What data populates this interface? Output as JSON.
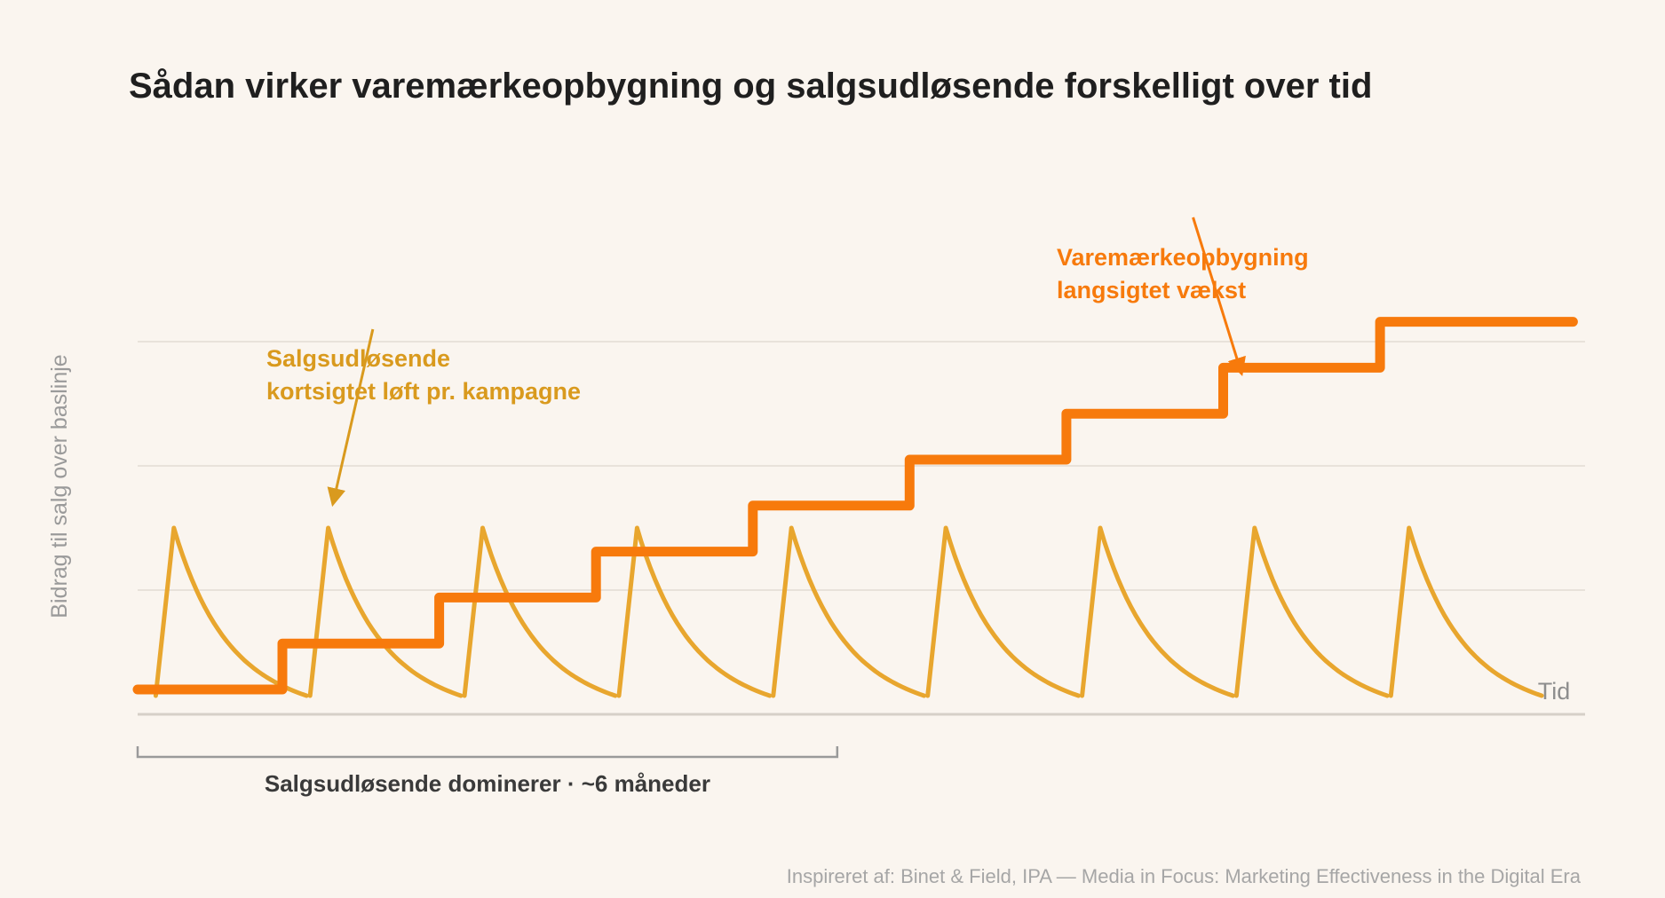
{
  "chart_data": {
    "type": "line",
    "title": "Sådan virker varemærkeopbygning og salgsudløsende forskelligt over tid",
    "ylabel": "Bidrag til salg over baslinje",
    "xlabel": "Tid",
    "grid": true,
    "legend": "none",
    "xlim": [
      0,
      12
    ],
    "ylim": [
      0,
      4
    ],
    "colors": {
      "brand": "#f77a0c",
      "activation": "#e8a62e",
      "activation_text": "#d99a1e"
    },
    "series": [
      {
        "name": "Varemærkeopbygning",
        "style": "step",
        "steps": [
          {
            "x0": 0.0,
            "x1": 1.2,
            "y": 0.2
          },
          {
            "x0": 1.2,
            "x1": 2.5,
            "y": 0.57
          },
          {
            "x0": 2.5,
            "x1": 3.8,
            "y": 0.94
          },
          {
            "x0": 3.8,
            "x1": 5.1,
            "y": 1.31
          },
          {
            "x0": 5.1,
            "x1": 6.4,
            "y": 1.68
          },
          {
            "x0": 6.4,
            "x1": 7.7,
            "y": 2.05
          },
          {
            "x0": 7.7,
            "x1": 9.0,
            "y": 2.42
          },
          {
            "x0": 9.0,
            "x1": 10.3,
            "y": 2.79
          },
          {
            "x0": 10.3,
            "x1": 11.9,
            "y": 3.16
          }
        ]
      },
      {
        "name": "Salgsudløsende",
        "style": "sawtooth",
        "peak": 1.5,
        "floor": 0.15,
        "rise_width": 0.15,
        "decay_width": 1.1,
        "starts": [
          0.15,
          1.43,
          2.71,
          3.99,
          5.27,
          6.55,
          7.83,
          9.11,
          10.39
        ]
      }
    ],
    "annotations": [
      {
        "lines": [
          "Salgsudløsende",
          "kortsigtet løft pr. kampagne"
        ],
        "color": "#d99a1e",
        "arrow_from": {
          "x": 1.95,
          "y": 3.1
        },
        "arrow_to": {
          "x": 1.62,
          "y": 1.7
        }
      },
      {
        "lines": [
          "Varemærkeopbygning",
          "langsigtet vækst"
        ],
        "color": "#f77a0c",
        "arrow_from": {
          "x": 8.75,
          "y": 4.0
        },
        "arrow_to": {
          "x": 9.15,
          "y": 2.75
        }
      }
    ],
    "bracket": {
      "x0": 0,
      "x1": 5.8,
      "label": "Salgsudløsende dominerer · ~6 måneder"
    },
    "source": "Inspireret af: Binet & Field, IPA — Media in Focus: Marketing Effectiveness in the Digital Era"
  }
}
